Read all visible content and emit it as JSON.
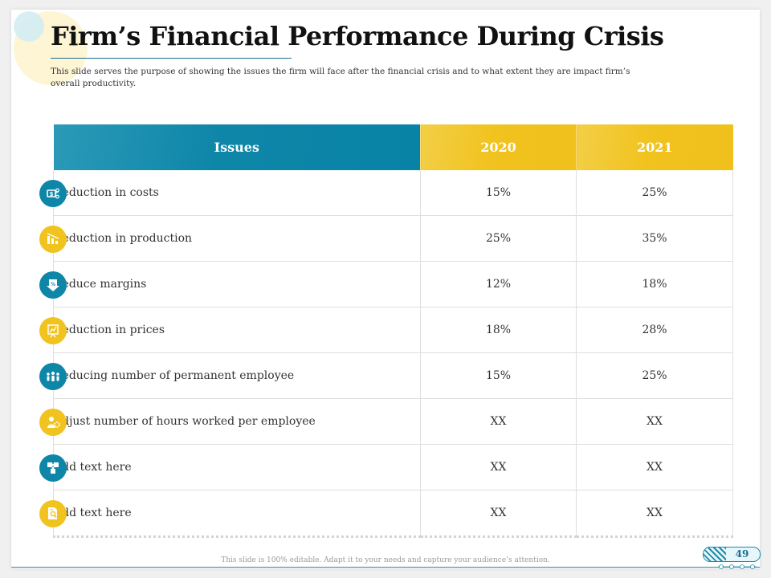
{
  "slide": {
    "title": "Firm’s Financial Performance During Crisis",
    "subtitle": "This slide serves the purpose of showing the issues the firm will face after the financial crisis and to what extent they are impact firm’s overall productivity.",
    "footer_note": "This slide is 100% editable. Adapt it to your needs and capture your audience’s attention.",
    "page_number": "49"
  },
  "table": {
    "headers": {
      "issues": "Issues",
      "year1": "2020",
      "year2": "2021"
    },
    "rows": [
      {
        "issue": "Reduction in costs",
        "y2020": "15%",
        "y2021": "25%",
        "icon": "money-cut-icon",
        "icon_color": "#0e86a8"
      },
      {
        "issue": "Reduction in production",
        "y2020": "25%",
        "y2021": "35%",
        "icon": "declining-bars-icon",
        "icon_color": "#f1c31f"
      },
      {
        "issue": "Reduce margins",
        "y2020": "12%",
        "y2021": "18%",
        "icon": "percent-down-icon",
        "icon_color": "#0e86a8"
      },
      {
        "issue": "Reduction in prices",
        "y2020": "18%",
        "y2021": "28%",
        "icon": "price-chart-icon",
        "icon_color": "#f1c31f"
      },
      {
        "issue": "Reducing number of permanent employee",
        "y2020": "15%",
        "y2021": "25%",
        "icon": "people-group-icon",
        "icon_color": "#0e86a8"
      },
      {
        "issue": "Adjust number of hours worked per employee",
        "y2020": "XX",
        "y2021": "XX",
        "icon": "worker-gears-icon",
        "icon_color": "#f1c31f"
      },
      {
        "issue": "Add text here",
        "y2020": "XX",
        "y2021": "XX",
        "icon": "puzzle-pieces-icon",
        "icon_color": "#0e86a8"
      },
      {
        "issue": "Add text here",
        "y2020": "XX",
        "y2021": "XX",
        "icon": "document-search-icon",
        "icon_color": "#f1c31f"
      }
    ]
  },
  "colors": {
    "teal": "#0e86a8",
    "yellow": "#f1c31f",
    "title_rule": "#1e6e93"
  }
}
